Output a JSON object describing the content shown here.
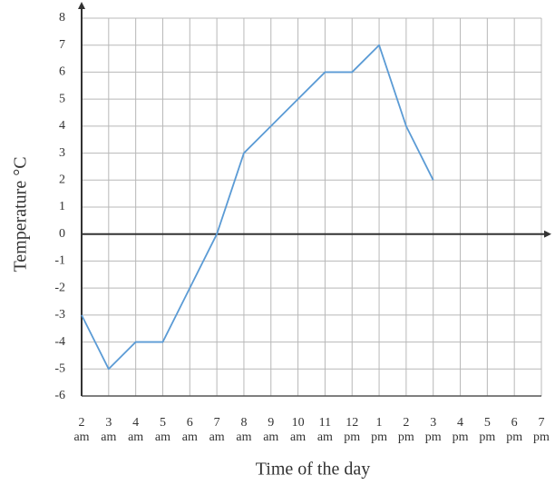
{
  "chart_data": {
    "type": "line",
    "x_label": "Time of the day",
    "y_label": "Temperature °C",
    "categories": [
      [
        "2",
        "am"
      ],
      [
        "3",
        "am"
      ],
      [
        "4",
        "am"
      ],
      [
        "5",
        "am"
      ],
      [
        "6",
        "am"
      ],
      [
        "7",
        "am"
      ],
      [
        "8",
        "am"
      ],
      [
        "9",
        "am"
      ],
      [
        "10",
        "am"
      ],
      [
        "11",
        "am"
      ],
      [
        "12",
        "pm"
      ],
      [
        "1",
        "pm"
      ],
      [
        "2",
        "pm"
      ],
      [
        "3",
        "pm"
      ],
      [
        "4",
        "pm"
      ],
      [
        "5",
        "pm"
      ],
      [
        "6",
        "pm"
      ],
      [
        "7",
        "pm"
      ]
    ],
    "values": [
      -3,
      -5,
      -4,
      -4,
      -2,
      0,
      3,
      4,
      5,
      6,
      6,
      7,
      4,
      2,
      null,
      null,
      null,
      null
    ],
    "color": "#5b9bd5",
    "ylim": [
      -6,
      8
    ],
    "yticks": [
      -6,
      -5,
      -4,
      -3,
      -2,
      -1,
      0,
      1,
      2,
      3,
      4,
      5,
      6,
      7,
      8
    ],
    "grid": true
  }
}
